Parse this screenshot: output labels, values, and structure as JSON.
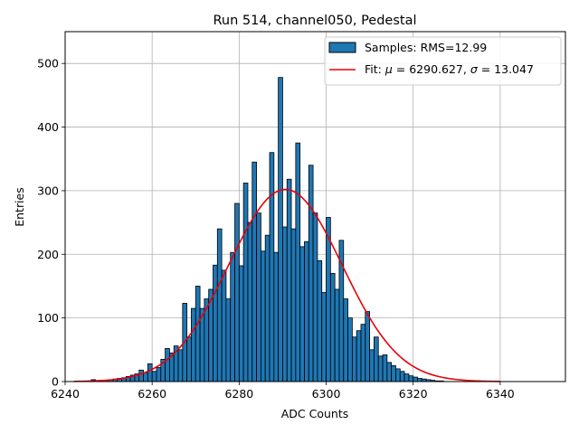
{
  "chart_data": {
    "type": "bar",
    "title": "Run 514, channel050, Pedestal",
    "xlabel": "ADC Counts",
    "ylabel": "Entries",
    "xlim": [
      6240,
      6355
    ],
    "ylim": [
      0,
      550
    ],
    "x_ticks": [
      6240,
      6260,
      6280,
      6300,
      6320,
      6340
    ],
    "y_ticks": [
      0,
      100,
      200,
      300,
      400,
      500
    ],
    "grid": true,
    "legend_position": "top-right",
    "bin_width": 1,
    "bins_start": 6246,
    "values": [
      3,
      1,
      2,
      2,
      3,
      4,
      5,
      6,
      8,
      10,
      12,
      18,
      14,
      28,
      16,
      22,
      35,
      52,
      45,
      56,
      50,
      123,
      70,
      115,
      150,
      115,
      130,
      145,
      183,
      240,
      175,
      130,
      203,
      280,
      182,
      312,
      250,
      345,
      265,
      205,
      230,
      360,
      203,
      478,
      243,
      318,
      240,
      375,
      212,
      220,
      340,
      265,
      190,
      140,
      258,
      170,
      145,
      222,
      130,
      100,
      70,
      80,
      90,
      110,
      50,
      70,
      40,
      42,
      30,
      25,
      20,
      16,
      12,
      9,
      7,
      5,
      4,
      3,
      2,
      1,
      1
    ],
    "series": [
      {
        "name": "Samples: RMS=12.99",
        "kind": "histogram",
        "color": "#1f77b4",
        "edgecolor": "#000000"
      },
      {
        "name_prefix": "Fit: ",
        "name_mu": "μ",
        "name_mid": " = 6290.627, ",
        "name_sigma": "σ",
        "name_suffix": " = 13.047",
        "kind": "gaussian",
        "color": "#e8000b",
        "mu": 6290.627,
        "sigma": 13.047,
        "amplitude": 302,
        "x_range": [
          6242,
          6340
        ]
      }
    ]
  }
}
